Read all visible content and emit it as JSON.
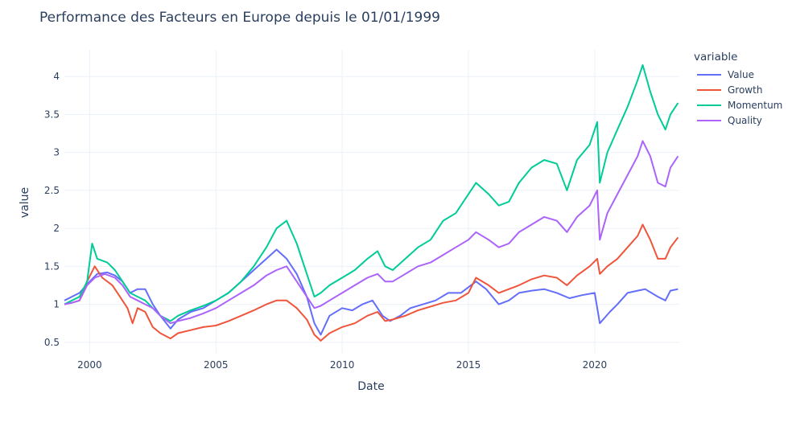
{
  "chart_data": {
    "type": "line",
    "title": "Performance des Facteurs en Europe depuis le 01/01/1999",
    "xlabel": "Date",
    "ylabel": "value",
    "xlim": [
      1999.0,
      2023.35
    ],
    "ylim": [
      0.35,
      4.35
    ],
    "xticks": [
      2000,
      2005,
      2010,
      2015,
      2020
    ],
    "xtick_labels": [
      "2000",
      "2005",
      "2010",
      "2015",
      "2020"
    ],
    "yticks": [
      0.5,
      1,
      1.5,
      2,
      2.5,
      3,
      3.5,
      4
    ],
    "ytick_labels": [
      "0.5",
      "1",
      "1.5",
      "2",
      "2.5",
      "3",
      "3.5",
      "4"
    ],
    "grid": true,
    "legend": {
      "title": "variable",
      "placement": "top-right"
    },
    "series": [
      {
        "name": "Value",
        "color": "#636efa",
        "points": [
          [
            1999.0,
            1.05
          ],
          [
            1999.3,
            1.1
          ],
          [
            1999.6,
            1.15
          ],
          [
            2000.0,
            1.3
          ],
          [
            2000.3,
            1.4
          ],
          [
            2000.7,
            1.42
          ],
          [
            2001.0,
            1.38
          ],
          [
            2001.3,
            1.3
          ],
          [
            2001.6,
            1.15
          ],
          [
            2001.9,
            1.2
          ],
          [
            2002.2,
            1.2
          ],
          [
            2002.5,
            1.0
          ],
          [
            2002.8,
            0.85
          ],
          [
            2003.2,
            0.68
          ],
          [
            2003.5,
            0.8
          ],
          [
            2004.0,
            0.9
          ],
          [
            2004.5,
            0.95
          ],
          [
            2005.0,
            1.05
          ],
          [
            2005.5,
            1.15
          ],
          [
            2006.0,
            1.3
          ],
          [
            2006.5,
            1.45
          ],
          [
            2007.0,
            1.6
          ],
          [
            2007.4,
            1.72
          ],
          [
            2007.8,
            1.6
          ],
          [
            2008.2,
            1.4
          ],
          [
            2008.6,
            1.1
          ],
          [
            2008.9,
            0.75
          ],
          [
            2009.15,
            0.6
          ],
          [
            2009.5,
            0.85
          ],
          [
            2010.0,
            0.95
          ],
          [
            2010.4,
            0.92
          ],
          [
            2010.8,
            1.0
          ],
          [
            2011.2,
            1.05
          ],
          [
            2011.6,
            0.85
          ],
          [
            2011.9,
            0.78
          ],
          [
            2012.3,
            0.85
          ],
          [
            2012.7,
            0.95
          ],
          [
            2013.2,
            1.0
          ],
          [
            2013.7,
            1.05
          ],
          [
            2014.2,
            1.15
          ],
          [
            2014.7,
            1.15
          ],
          [
            2015.3,
            1.3
          ],
          [
            2015.7,
            1.2
          ],
          [
            2016.2,
            1.0
          ],
          [
            2016.6,
            1.05
          ],
          [
            2017.0,
            1.15
          ],
          [
            2017.5,
            1.18
          ],
          [
            2018.0,
            1.2
          ],
          [
            2018.5,
            1.15
          ],
          [
            2019.0,
            1.08
          ],
          [
            2019.5,
            1.12
          ],
          [
            2020.0,
            1.15
          ],
          [
            2020.2,
            0.75
          ],
          [
            2020.6,
            0.9
          ],
          [
            2020.9,
            1.0
          ],
          [
            2021.3,
            1.15
          ],
          [
            2021.7,
            1.18
          ],
          [
            2022.0,
            1.2
          ],
          [
            2022.5,
            1.1
          ],
          [
            2022.8,
            1.05
          ],
          [
            2023.0,
            1.18
          ],
          [
            2023.3,
            1.2
          ]
        ]
      },
      {
        "name": "Growth",
        "color": "#ef553b",
        "points": [
          [
            1999.0,
            1.0
          ],
          [
            1999.3,
            1.02
          ],
          [
            1999.6,
            1.05
          ],
          [
            1999.9,
            1.3
          ],
          [
            2000.2,
            1.5
          ],
          [
            2000.5,
            1.35
          ],
          [
            2000.9,
            1.25
          ],
          [
            2001.2,
            1.1
          ],
          [
            2001.5,
            0.95
          ],
          [
            2001.7,
            0.75
          ],
          [
            2001.9,
            0.95
          ],
          [
            2002.2,
            0.9
          ],
          [
            2002.5,
            0.7
          ],
          [
            2002.8,
            0.62
          ],
          [
            2003.2,
            0.55
          ],
          [
            2003.5,
            0.62
          ],
          [
            2004.0,
            0.66
          ],
          [
            2004.5,
            0.7
          ],
          [
            2005.0,
            0.72
          ],
          [
            2005.5,
            0.78
          ],
          [
            2006.0,
            0.85
          ],
          [
            2006.5,
            0.92
          ],
          [
            2007.0,
            1.0
          ],
          [
            2007.4,
            1.05
          ],
          [
            2007.8,
            1.05
          ],
          [
            2008.2,
            0.95
          ],
          [
            2008.6,
            0.8
          ],
          [
            2008.9,
            0.6
          ],
          [
            2009.15,
            0.52
          ],
          [
            2009.5,
            0.62
          ],
          [
            2010.0,
            0.7
          ],
          [
            2010.5,
            0.75
          ],
          [
            2011.0,
            0.85
          ],
          [
            2011.4,
            0.9
          ],
          [
            2011.7,
            0.78
          ],
          [
            2012.0,
            0.8
          ],
          [
            2012.5,
            0.85
          ],
          [
            2013.0,
            0.92
          ],
          [
            2013.5,
            0.97
          ],
          [
            2014.0,
            1.02
          ],
          [
            2014.5,
            1.05
          ],
          [
            2015.0,
            1.15
          ],
          [
            2015.3,
            1.35
          ],
          [
            2015.8,
            1.25
          ],
          [
            2016.2,
            1.15
          ],
          [
            2016.6,
            1.2
          ],
          [
            2017.0,
            1.25
          ],
          [
            2017.5,
            1.33
          ],
          [
            2018.0,
            1.38
          ],
          [
            2018.5,
            1.35
          ],
          [
            2018.9,
            1.25
          ],
          [
            2019.3,
            1.38
          ],
          [
            2019.8,
            1.5
          ],
          [
            2020.1,
            1.6
          ],
          [
            2020.2,
            1.4
          ],
          [
            2020.5,
            1.5
          ],
          [
            2020.9,
            1.6
          ],
          [
            2021.3,
            1.75
          ],
          [
            2021.7,
            1.9
          ],
          [
            2021.9,
            2.05
          ],
          [
            2022.2,
            1.85
          ],
          [
            2022.5,
            1.6
          ],
          [
            2022.8,
            1.6
          ],
          [
            2023.0,
            1.75
          ],
          [
            2023.3,
            1.88
          ]
        ]
      },
      {
        "name": "Momentum",
        "color": "#00cc96",
        "points": [
          [
            1999.0,
            1.0
          ],
          [
            1999.3,
            1.05
          ],
          [
            1999.6,
            1.1
          ],
          [
            1999.9,
            1.3
          ],
          [
            2000.1,
            1.8
          ],
          [
            2000.3,
            1.6
          ],
          [
            2000.7,
            1.55
          ],
          [
            2001.0,
            1.45
          ],
          [
            2001.3,
            1.3
          ],
          [
            2001.6,
            1.15
          ],
          [
            2001.9,
            1.1
          ],
          [
            2002.2,
            1.05
          ],
          [
            2002.5,
            0.95
          ],
          [
            2002.8,
            0.85
          ],
          [
            2003.2,
            0.78
          ],
          [
            2003.5,
            0.85
          ],
          [
            2004.0,
            0.92
          ],
          [
            2004.5,
            0.98
          ],
          [
            2005.0,
            1.05
          ],
          [
            2005.5,
            1.15
          ],
          [
            2006.0,
            1.3
          ],
          [
            2006.5,
            1.5
          ],
          [
            2007.0,
            1.75
          ],
          [
            2007.4,
            2.0
          ],
          [
            2007.8,
            2.1
          ],
          [
            2008.2,
            1.8
          ],
          [
            2008.6,
            1.4
          ],
          [
            2008.9,
            1.1
          ],
          [
            2009.15,
            1.15
          ],
          [
            2009.5,
            1.25
          ],
          [
            2010.0,
            1.35
          ],
          [
            2010.5,
            1.45
          ],
          [
            2011.0,
            1.6
          ],
          [
            2011.4,
            1.7
          ],
          [
            2011.7,
            1.5
          ],
          [
            2012.0,
            1.45
          ],
          [
            2012.5,
            1.6
          ],
          [
            2013.0,
            1.75
          ],
          [
            2013.5,
            1.85
          ],
          [
            2014.0,
            2.1
          ],
          [
            2014.5,
            2.2
          ],
          [
            2015.0,
            2.45
          ],
          [
            2015.3,
            2.6
          ],
          [
            2015.8,
            2.45
          ],
          [
            2016.2,
            2.3
          ],
          [
            2016.6,
            2.35
          ],
          [
            2017.0,
            2.6
          ],
          [
            2017.5,
            2.8
          ],
          [
            2018.0,
            2.9
          ],
          [
            2018.5,
            2.85
          ],
          [
            2018.9,
            2.5
          ],
          [
            2019.3,
            2.9
          ],
          [
            2019.8,
            3.1
          ],
          [
            2020.1,
            3.4
          ],
          [
            2020.2,
            2.6
          ],
          [
            2020.5,
            3.0
          ],
          [
            2020.9,
            3.3
          ],
          [
            2021.3,
            3.6
          ],
          [
            2021.7,
            3.95
          ],
          [
            2021.9,
            4.15
          ],
          [
            2022.2,
            3.8
          ],
          [
            2022.5,
            3.5
          ],
          [
            2022.8,
            3.3
          ],
          [
            2023.0,
            3.5
          ],
          [
            2023.3,
            3.65
          ]
        ]
      },
      {
        "name": "Quality",
        "color": "#ab63fa",
        "points": [
          [
            1999.0,
            1.0
          ],
          [
            1999.3,
            1.02
          ],
          [
            1999.6,
            1.05
          ],
          [
            1999.9,
            1.25
          ],
          [
            2000.2,
            1.35
          ],
          [
            2000.6,
            1.4
          ],
          [
            2001.0,
            1.35
          ],
          [
            2001.3,
            1.25
          ],
          [
            2001.6,
            1.1
          ],
          [
            2001.9,
            1.05
          ],
          [
            2002.2,
            1.0
          ],
          [
            2002.5,
            0.95
          ],
          [
            2002.8,
            0.85
          ],
          [
            2003.2,
            0.75
          ],
          [
            2003.5,
            0.78
          ],
          [
            2004.0,
            0.82
          ],
          [
            2004.5,
            0.88
          ],
          [
            2005.0,
            0.95
          ],
          [
            2005.5,
            1.05
          ],
          [
            2006.0,
            1.15
          ],
          [
            2006.5,
            1.25
          ],
          [
            2007.0,
            1.38
          ],
          [
            2007.4,
            1.45
          ],
          [
            2007.8,
            1.5
          ],
          [
            2008.2,
            1.3
          ],
          [
            2008.6,
            1.1
          ],
          [
            2008.9,
            0.95
          ],
          [
            2009.15,
            0.98
          ],
          [
            2009.5,
            1.05
          ],
          [
            2010.0,
            1.15
          ],
          [
            2010.5,
            1.25
          ],
          [
            2011.0,
            1.35
          ],
          [
            2011.4,
            1.4
          ],
          [
            2011.7,
            1.3
          ],
          [
            2012.0,
            1.3
          ],
          [
            2012.5,
            1.4
          ],
          [
            2013.0,
            1.5
          ],
          [
            2013.5,
            1.55
          ],
          [
            2014.0,
            1.65
          ],
          [
            2014.5,
            1.75
          ],
          [
            2015.0,
            1.85
          ],
          [
            2015.3,
            1.95
          ],
          [
            2015.8,
            1.85
          ],
          [
            2016.2,
            1.75
          ],
          [
            2016.6,
            1.8
          ],
          [
            2017.0,
            1.95
          ],
          [
            2017.5,
            2.05
          ],
          [
            2018.0,
            2.15
          ],
          [
            2018.5,
            2.1
          ],
          [
            2018.9,
            1.95
          ],
          [
            2019.3,
            2.15
          ],
          [
            2019.8,
            2.3
          ],
          [
            2020.1,
            2.5
          ],
          [
            2020.2,
            1.85
          ],
          [
            2020.5,
            2.2
          ],
          [
            2020.9,
            2.45
          ],
          [
            2021.3,
            2.7
          ],
          [
            2021.7,
            2.95
          ],
          [
            2021.9,
            3.15
          ],
          [
            2022.2,
            2.95
          ],
          [
            2022.5,
            2.6
          ],
          [
            2022.8,
            2.55
          ],
          [
            2023.0,
            2.8
          ],
          [
            2023.3,
            2.95
          ]
        ]
      }
    ]
  }
}
